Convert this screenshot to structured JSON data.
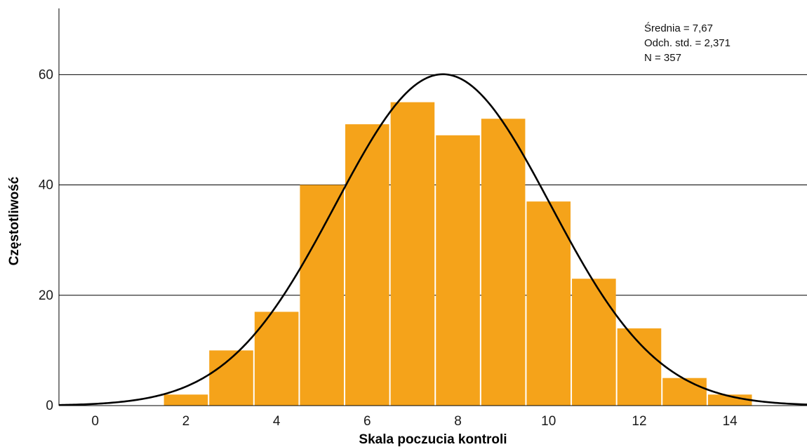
{
  "chart_data": {
    "type": "bar",
    "subtype": "histogram",
    "bins": [
      {
        "x": 2,
        "count": 2
      },
      {
        "x": 3,
        "count": 10
      },
      {
        "x": 4,
        "count": 17
      },
      {
        "x": 5,
        "count": 40
      },
      {
        "x": 6,
        "count": 51
      },
      {
        "x": 7,
        "count": 55
      },
      {
        "x": 8,
        "count": 49
      },
      {
        "x": 9,
        "count": 52
      },
      {
        "x": 10,
        "count": 37
      },
      {
        "x": 11,
        "count": 23
      },
      {
        "x": 12,
        "count": 14
      },
      {
        "x": 13,
        "count": 5
      },
      {
        "x": 14,
        "count": 2
      }
    ],
    "normal_curve": {
      "mean": 7.67,
      "sd": 2.371,
      "n": 357
    },
    "xlabel": "Skala poczucia kontroli",
    "ylabel": "Częstotliwość",
    "xlim": [
      -0.8,
      15.7
    ],
    "ylim": [
      0,
      72
    ],
    "x_ticks": [
      0,
      2,
      4,
      6,
      8,
      10,
      12,
      14
    ],
    "y_ticks": [
      0,
      20,
      40,
      60
    ],
    "grid": "horizontal",
    "bar_color": "#F5A31A",
    "curve_color": "#000000",
    "stats": {
      "mean_label": "Średnia = 7,67",
      "sd_label": "Odch. std. = 2,371",
      "n_label": "N = 357"
    }
  }
}
